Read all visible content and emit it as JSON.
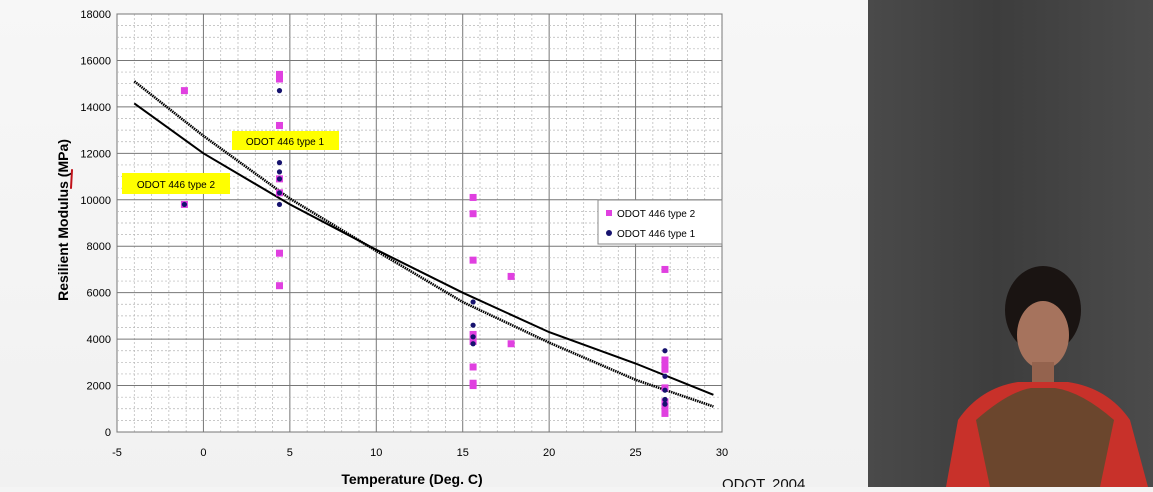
{
  "chart_data": {
    "type": "scatter",
    "xlabel": "Temperature (Deg. C)",
    "ylabel": "Resilient Modulus (MPa)",
    "xlim": [
      -5,
      30
    ],
    "ylim": [
      0,
      18000
    ],
    "x_ticks": [
      -5,
      0,
      5,
      10,
      15,
      20,
      25,
      30
    ],
    "y_ticks": [
      0,
      2000,
      4000,
      6000,
      8000,
      10000,
      12000,
      14000,
      16000,
      18000
    ],
    "grid": "major and minor, dashed minor",
    "legend": "right",
    "series": [
      {
        "name": "ODOT 446 type 2",
        "marker": "square",
        "color": "#e040e0",
        "points": [
          {
            "x": -1.1,
            "y": 14700
          },
          {
            "x": -1.1,
            "y": 9800
          },
          {
            "x": 4.4,
            "y": 15400
          },
          {
            "x": 4.4,
            "y": 15200
          },
          {
            "x": 4.4,
            "y": 13200
          },
          {
            "x": 4.4,
            "y": 10900
          },
          {
            "x": 4.4,
            "y": 10300
          },
          {
            "x": 4.4,
            "y": 7700
          },
          {
            "x": 4.4,
            "y": 6300
          },
          {
            "x": 15.6,
            "y": 10100
          },
          {
            "x": 15.6,
            "y": 9400
          },
          {
            "x": 15.6,
            "y": 7400
          },
          {
            "x": 15.6,
            "y": 4200
          },
          {
            "x": 15.6,
            "y": 3900
          },
          {
            "x": 15.6,
            "y": 2800
          },
          {
            "x": 15.6,
            "y": 2100
          },
          {
            "x": 15.6,
            "y": 2000
          },
          {
            "x": 17.8,
            "y": 6700
          },
          {
            "x": 17.8,
            "y": 3800
          },
          {
            "x": 26.7,
            "y": 7000
          },
          {
            "x": 26.7,
            "y": 3100
          },
          {
            "x": 26.7,
            "y": 2900
          },
          {
            "x": 26.7,
            "y": 2700
          },
          {
            "x": 26.7,
            "y": 1900
          },
          {
            "x": 26.7,
            "y": 1300
          },
          {
            "x": 26.7,
            "y": 1100
          },
          {
            "x": 26.7,
            "y": 800
          }
        ],
        "trend": {
          "x": [
            -4,
            0,
            5,
            10,
            15,
            20,
            25,
            29.5
          ],
          "y": [
            15100,
            12750,
            10050,
            7800,
            5600,
            3850,
            2250,
            1100
          ]
        }
      },
      {
        "name": "ODOT 446 type 1",
        "marker": "circle",
        "color": "#16126e",
        "points": [
          {
            "x": -1.1,
            "y": 9800
          },
          {
            "x": 4.4,
            "y": 14700
          },
          {
            "x": 4.4,
            "y": 11600
          },
          {
            "x": 4.4,
            "y": 11200
          },
          {
            "x": 4.4,
            "y": 10900
          },
          {
            "x": 4.4,
            "y": 10300
          },
          {
            "x": 4.4,
            "y": 9800
          },
          {
            "x": 15.6,
            "y": 5600
          },
          {
            "x": 15.6,
            "y": 4600
          },
          {
            "x": 15.6,
            "y": 4100
          },
          {
            "x": 15.6,
            "y": 3800
          },
          {
            "x": 26.7,
            "y": 3500
          },
          {
            "x": 26.7,
            "y": 2400
          },
          {
            "x": 26.7,
            "y": 1800
          },
          {
            "x": 26.7,
            "y": 1400
          },
          {
            "x": 26.7,
            "y": 1200
          }
        ],
        "trend": {
          "x": [
            -4,
            0,
            5,
            10,
            15,
            20,
            25,
            29.5
          ],
          "y": [
            14150,
            12000,
            9800,
            7850,
            6000,
            4300,
            2950,
            1600
          ]
        }
      }
    ],
    "annotations": [
      {
        "text": "ODOT 446 type 1",
        "color": "#ffff00"
      },
      {
        "text": "ODOT 446 type 2",
        "color": "#ffff00"
      }
    ],
    "source": "ODOT, 2004"
  }
}
